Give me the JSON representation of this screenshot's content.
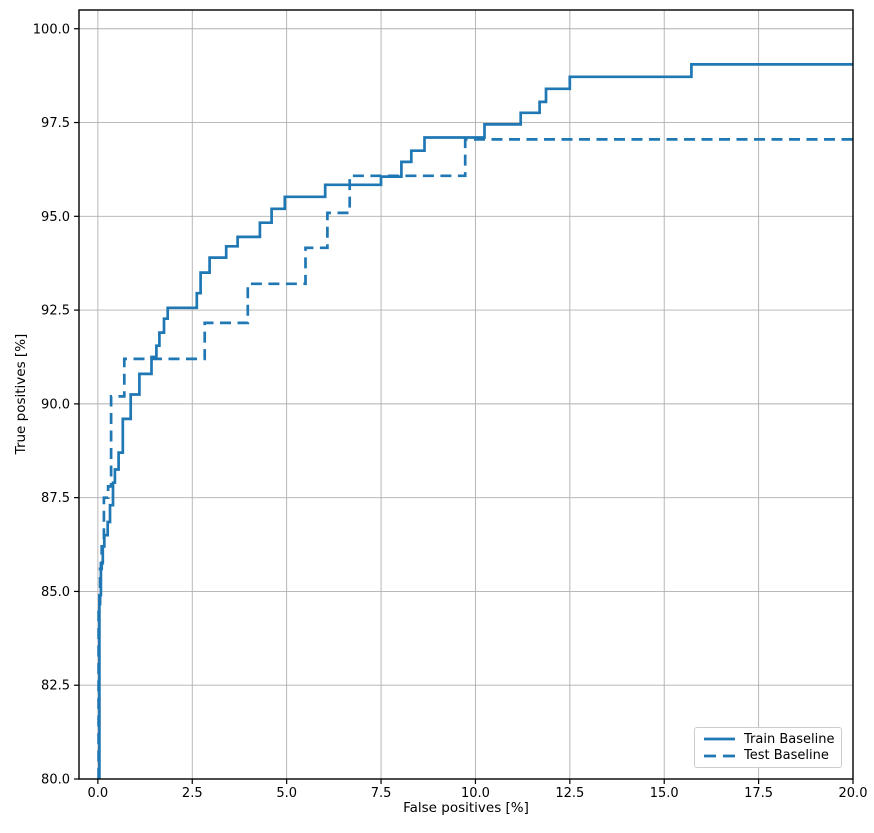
{
  "chart_data": {
    "type": "line",
    "subtype": "step-roc-curve",
    "title": "",
    "xlabel": "False positives [%]",
    "ylabel": "True positives [%]",
    "xlim": [
      -0.5,
      20.0
    ],
    "ylim": [
      80.0,
      100.5
    ],
    "x_ticks": [
      0.0,
      2.5,
      5.0,
      7.5,
      10.0,
      12.5,
      15.0,
      17.5,
      20.0
    ],
    "x_tick_labels": [
      "0.0",
      "2.5",
      "5.0",
      "7.5",
      "10.0",
      "12.5",
      "15.0",
      "17.5",
      "20.0"
    ],
    "y_ticks": [
      80.0,
      82.5,
      85.0,
      87.5,
      90.0,
      92.5,
      95.0,
      97.5,
      100.0
    ],
    "y_tick_labels": [
      "80.0",
      "82.5",
      "85.0",
      "87.5",
      "90.0",
      "92.5",
      "95.0",
      "97.5",
      "100.0"
    ],
    "grid": true,
    "grid_color": "#b0b0b0",
    "spine_color": "#000000",
    "line_color": "#1f77b4",
    "legend_position": "lower right",
    "point_format": "step_points are [false_positive_%, true_positive_% reached at that x]; curve rises vertically at each x then runs flat to the next x",
    "series": [
      {
        "name": "Train Baseline",
        "style": "solid",
        "step_points": [
          [
            0.04,
            84.9
          ],
          [
            0.08,
            85.75
          ],
          [
            0.13,
            86.2
          ],
          [
            0.17,
            86.5
          ],
          [
            0.26,
            86.85
          ],
          [
            0.32,
            87.3
          ],
          [
            0.4,
            87.9
          ],
          [
            0.45,
            88.25
          ],
          [
            0.55,
            88.7
          ],
          [
            0.66,
            89.6
          ],
          [
            0.87,
            90.25
          ],
          [
            1.1,
            90.8
          ],
          [
            1.42,
            91.25
          ],
          [
            1.55,
            91.55
          ],
          [
            1.63,
            91.9
          ],
          [
            1.75,
            92.27
          ],
          [
            1.85,
            92.56
          ],
          [
            2.62,
            92.95
          ],
          [
            2.72,
            93.5
          ],
          [
            2.96,
            93.9
          ],
          [
            3.4,
            94.2
          ],
          [
            3.7,
            94.45
          ],
          [
            4.29,
            94.83
          ],
          [
            4.6,
            95.2
          ],
          [
            4.95,
            95.52
          ],
          [
            6.02,
            95.84
          ],
          [
            7.5,
            96.06
          ],
          [
            8.04,
            96.45
          ],
          [
            8.3,
            96.75
          ],
          [
            8.65,
            97.1
          ],
          [
            10.24,
            97.45
          ],
          [
            11.2,
            97.76
          ],
          [
            11.7,
            98.05
          ],
          [
            11.87,
            98.4
          ],
          [
            12.5,
            98.72
          ],
          [
            15.72,
            99.05
          ],
          [
            20.0,
            99.05
          ]
        ]
      },
      {
        "name": "Test Baseline",
        "style": "dashed",
        "step_points": [
          [
            0.02,
            84.5
          ],
          [
            0.06,
            85.6
          ],
          [
            0.1,
            86.2
          ],
          [
            0.16,
            87.5
          ],
          [
            0.27,
            87.8
          ],
          [
            0.35,
            90.2
          ],
          [
            0.7,
            91.2
          ],
          [
            2.83,
            92.16
          ],
          [
            3.97,
            93.2
          ],
          [
            5.5,
            94.16
          ],
          [
            6.08,
            95.09
          ],
          [
            6.67,
            96.08
          ],
          [
            9.73,
            97.05
          ],
          [
            20.0,
            97.05
          ]
        ]
      }
    ]
  }
}
